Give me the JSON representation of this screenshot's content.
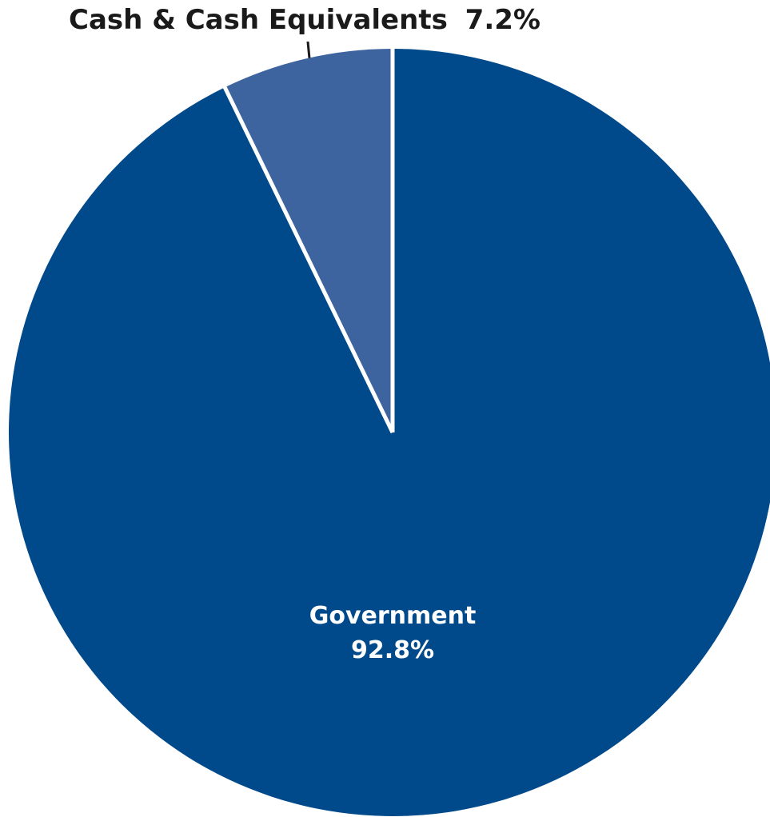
{
  "chart_data": {
    "type": "pie",
    "title": "",
    "slices": [
      {
        "label": "Government",
        "value": 92.8,
        "value_label": "92.8%",
        "color": "#004a8b"
      },
      {
        "label": "Cash & Cash Equivalents",
        "value": 7.2,
        "value_label": "7.2%",
        "color": "#3d649f"
      }
    ],
    "start_angle": "12 o'clock",
    "direction": "clockwise",
    "separator_color": "#ffffff",
    "legend": "none"
  }
}
